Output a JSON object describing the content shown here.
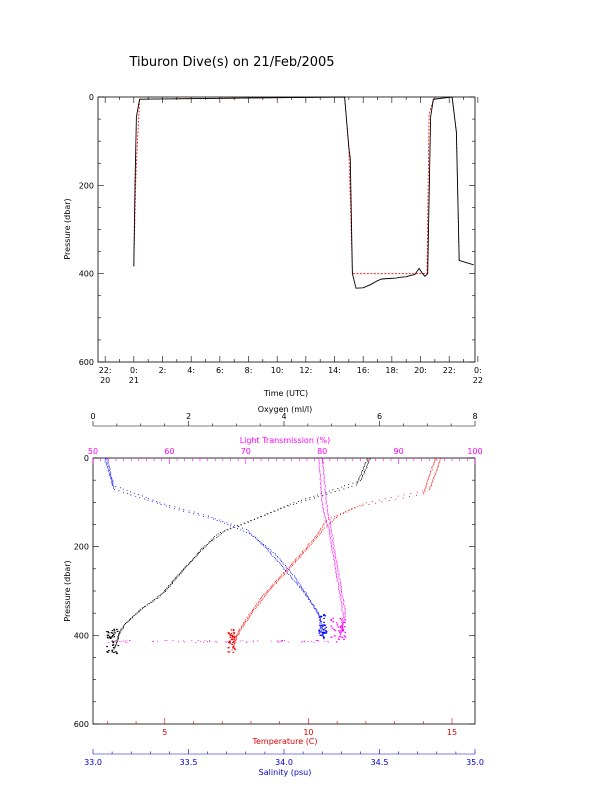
{
  "title": "Tiburon Dive(s) on 21/Feb/2005",
  "colors": {
    "black": "#000000",
    "red": "#ff0000",
    "magenta": "#ff00ff",
    "blue": "#0000ff",
    "salinity_axis": "#0000cc",
    "temperature_axis": "#dd0000",
    "transmission_axis": "#ff00ff"
  },
  "chart_data": [
    {
      "type": "line",
      "ylabel": "Pressure (dbar)",
      "xlabel": "Time (UTC)",
      "ylim": [
        600,
        0
      ],
      "xlim_hours": [
        -2.5,
        23.8
      ],
      "y_ticks": [
        "0",
        "200",
        "400",
        "600"
      ],
      "x_ticks": [
        {
          "at": -2,
          "line1": "22:",
          "line2": "20"
        },
        {
          "at": 0,
          "line1": "0:",
          "line2": "21"
        },
        {
          "at": 2,
          "line1": "2:",
          "line2": ""
        },
        {
          "at": 4,
          "line1": "4:",
          "line2": ""
        },
        {
          "at": 6,
          "line1": "6:",
          "line2": ""
        },
        {
          "at": 8,
          "line1": "8:",
          "line2": ""
        },
        {
          "at": 10,
          "line1": "10:",
          "line2": ""
        },
        {
          "at": 12,
          "line1": "12:",
          "line2": ""
        },
        {
          "at": 14,
          "line1": "14:",
          "line2": ""
        },
        {
          "at": 16,
          "line1": "16:",
          "line2": ""
        },
        {
          "at": 18,
          "line1": "18:",
          "line2": ""
        },
        {
          "at": 20,
          "line1": "20:",
          "line2": ""
        },
        {
          "at": 22,
          "line1": "22:",
          "line2": ""
        },
        {
          "at": 24,
          "line1": "0:",
          "line2": "22"
        }
      ],
      "series": [
        {
          "color": "#ff0000",
          "style": "dashed",
          "x": [
            0.0,
            0.15,
            0.4,
            14.7,
            15.0,
            15.25,
            20.45,
            20.6,
            20.9,
            22.2,
            22.5,
            22.7
          ],
          "y": [
            383,
            170,
            5,
            0,
            120,
            400,
            400,
            40,
            5,
            0,
            80,
            375
          ]
        },
        {
          "color": "#000000",
          "style": "solid",
          "x": [
            0.0,
            0.08,
            0.18,
            0.4,
            14.7,
            15.0,
            15.1,
            15.25,
            15.5,
            16.0,
            16.5,
            17.0,
            17.3,
            17.8,
            18.3,
            18.6,
            19.0,
            19.3,
            19.6,
            19.9,
            20.1,
            20.3,
            20.5,
            20.7,
            20.9,
            22.2,
            22.5,
            22.7,
            22.9,
            23.1,
            23.3,
            23.5,
            23.7
          ],
          "y": [
            383,
            200,
            45,
            5,
            0,
            115,
            140,
            400,
            433,
            432,
            425,
            416,
            412,
            411,
            410,
            408,
            407,
            404,
            402,
            388,
            398,
            406,
            400,
            45,
            5,
            0,
            80,
            370,
            372,
            374,
            376,
            378,
            380
          ]
        }
      ]
    },
    {
      "type": "scatter",
      "ylabel": "Pressure (dbar)",
      "ylim": [
        600,
        0
      ],
      "y_ticks": [
        "0",
        "200",
        "400",
        "600"
      ],
      "axes": {
        "oxygen": {
          "label": "Oxygen (ml/l)",
          "range": [
            0,
            8
          ],
          "ticks": [
            "0",
            "2",
            "4",
            "6",
            "8"
          ],
          "color": "#000000"
        },
        "transmission": {
          "label": "Light Transmission (%)",
          "range": [
            50,
            100
          ],
          "ticks": [
            "50",
            "60",
            "70",
            "80",
            "90",
            "100"
          ],
          "color": "#ff00ff"
        },
        "temperature": {
          "label": "Temperature (C)",
          "range": [
            2.5,
            15.8
          ],
          "ticks": [
            "5",
            "10",
            "15"
          ],
          "color": "#dd0000"
        },
        "salinity": {
          "label": "Salinity (psu)",
          "range": [
            33.0,
            35.0
          ],
          "ticks": [
            "33.0",
            "33.5",
            "34.0",
            "34.5",
            "35.0"
          ],
          "color": "#0000cc"
        }
      },
      "series": [
        {
          "name": "oxygen",
          "color": "#000000",
          "casts": [
            {
              "x": [
                5.8,
                5.6,
                4.2,
                3.3,
                2.8,
                2.3,
                1.9,
                1.5,
                1.0,
                0.7,
                0.55,
                0.5,
                0.45,
                0.4
              ],
              "y": [
                0,
                50,
                100,
                140,
                160,
                200,
                250,
                300,
                340,
                370,
                390,
                410,
                425,
                435
              ]
            },
            {
              "x": [
                5.75,
                5.5,
                4.0,
                3.1,
                2.6,
                2.2,
                1.8,
                1.4,
                0.95,
                0.65,
                0.55,
                0.5,
                0.45
              ],
              "y": [
                0,
                60,
                110,
                150,
                170,
                215,
                260,
                310,
                345,
                375,
                395,
                412,
                428
              ]
            }
          ]
        },
        {
          "name": "temperature",
          "color": "#ff0000",
          "casts": [
            {
              "x": [
                14.6,
                14.2,
                12.0,
                11.0,
                10.5,
                10.0,
                9.3,
                8.6,
                8.0,
                7.7,
                7.5,
                7.4,
                7.3
              ],
              "y": [
                0,
                70,
                100,
                130,
                160,
                200,
                250,
                300,
                350,
                380,
                400,
                420,
                435
              ]
            },
            {
              "x": [
                14.4,
                14.0,
                11.6,
                10.6,
                10.3,
                9.8,
                9.1,
                8.4,
                7.9,
                7.6,
                7.45,
                7.35
              ],
              "y": [
                0,
                80,
                110,
                140,
                170,
                210,
                260,
                310,
                355,
                385,
                405,
                430
              ]
            }
          ]
        },
        {
          "name": "salinity",
          "color": "#0000ff",
          "casts": [
            {
              "x": [
                33.06,
                33.1,
                33.35,
                33.6,
                33.8,
                33.9,
                34.0,
                34.1,
                34.18,
                34.2
              ],
              "y": [
                0,
                60,
                100,
                130,
                160,
                200,
                250,
                300,
                350,
                400
              ]
            },
            {
              "x": [
                33.07,
                33.11,
                33.4,
                33.65,
                33.82,
                33.95,
                34.05,
                34.13,
                34.19,
                34.21
              ],
              "y": [
                0,
                70,
                110,
                140,
                170,
                215,
                265,
                315,
                365,
                410
              ]
            }
          ]
        },
        {
          "name": "transmission",
          "color": "#ff00ff",
          "casts": [
            {
              "x": [
                80.0,
                80.5,
                81.0,
                81.5,
                82.0,
                82.5,
                83.0,
                82.5,
                82.0
              ],
              "y": [
                0,
                100,
                150,
                200,
                250,
                300,
                350,
                390,
                410
              ]
            },
            {
              "x": [
                79.5,
                80.0,
                80.8,
                81.3,
                81.8,
                82.3,
                82.7,
                82.3
              ],
              "y": [
                0,
                110,
                160,
                210,
                260,
                310,
                355,
                400
              ]
            }
          ],
          "bottom": {
            "x": [
              52,
              81
            ],
            "y": [
              410,
              415
            ]
          }
        }
      ]
    }
  ]
}
